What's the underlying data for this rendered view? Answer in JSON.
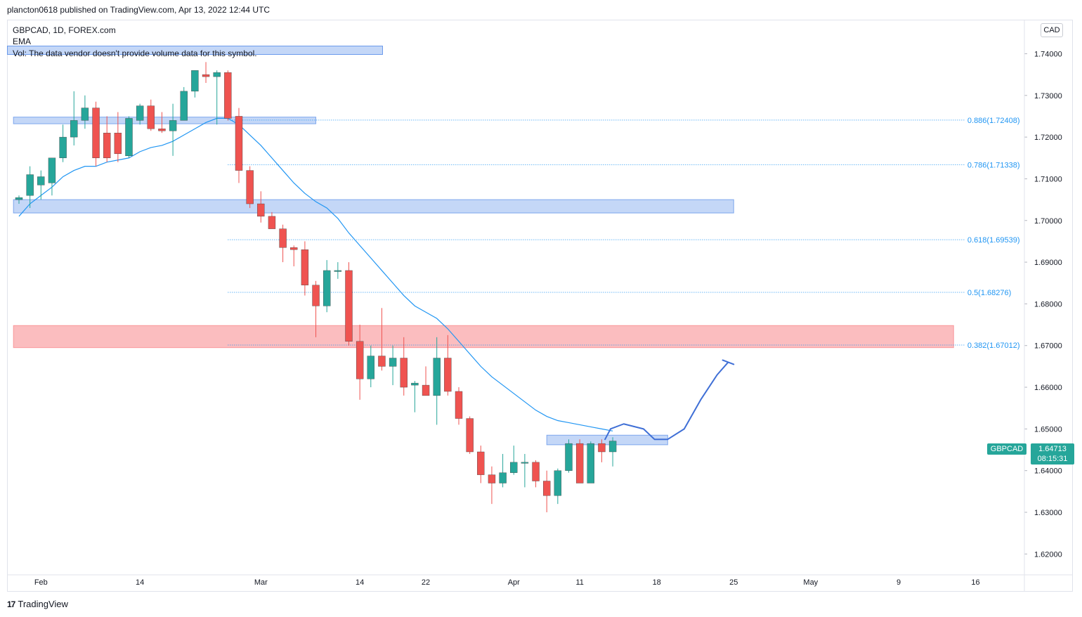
{
  "header": {
    "published": "plancton0618 published on TradingView.com, Apr 13, 2022 12:44 UTC"
  },
  "legend": {
    "symbol": "GBPCAD, 1D, FOREX.com",
    "ema": "EMA",
    "vol": "Vol: The data vendor doesn't provide volume data for this symbol."
  },
  "currency": "CAD",
  "price_tag": {
    "symbol": "GBPCAD",
    "price": "1.64713",
    "countdown": "08:15:31"
  },
  "footer": {
    "brand": "TradingView",
    "logo": "17"
  },
  "colors": {
    "up": "#26a69a",
    "down": "#ef5350",
    "ema": "#2196f3",
    "zone_blue": "#568ce8",
    "zone_red": "#f77c80",
    "fib": "#2196f3"
  },
  "chart_data": {
    "type": "candlestick",
    "symbol": "GBPCAD",
    "interval": "1D",
    "ylim": [
      1.615,
      1.748
    ],
    "y_ticks": [
      "1.74000",
      "1.73000",
      "1.72000",
      "1.71000",
      "1.70000",
      "1.69000",
      "1.68000",
      "1.67000",
      "1.66000",
      "1.65000",
      "1.64000",
      "1.63000",
      "1.62000"
    ],
    "x_labels": [
      {
        "label": "Feb",
        "bar": 2
      },
      {
        "label": "14",
        "bar": 11
      },
      {
        "label": "Mar",
        "bar": 22
      },
      {
        "label": "14",
        "bar": 31
      },
      {
        "label": "22",
        "bar": 37
      },
      {
        "label": "Apr",
        "bar": 45
      },
      {
        "label": "11",
        "bar": 51
      },
      {
        "label": "18",
        "bar": 58
      },
      {
        "label": "25",
        "bar": 65
      },
      {
        "label": "May",
        "bar": 72
      },
      {
        "label": "9",
        "bar": 80
      },
      {
        "label": "16",
        "bar": 87
      }
    ],
    "candles": [
      {
        "o": 1.705,
        "h": 1.706,
        "l": 1.704,
        "c": 1.7055
      },
      {
        "o": 1.706,
        "h": 1.713,
        "l": 1.703,
        "c": 1.711
      },
      {
        "o": 1.7085,
        "h": 1.712,
        "l": 1.705,
        "c": 1.7105
      },
      {
        "o": 1.709,
        "h": 1.715,
        "l": 1.706,
        "c": 1.715
      },
      {
        "o": 1.715,
        "h": 1.723,
        "l": 1.714,
        "c": 1.72
      },
      {
        "o": 1.72,
        "h": 1.731,
        "l": 1.718,
        "c": 1.724
      },
      {
        "o": 1.724,
        "h": 1.73,
        "l": 1.722,
        "c": 1.727
      },
      {
        "o": 1.727,
        "h": 1.7285,
        "l": 1.713,
        "c": 1.715
      },
      {
        "o": 1.721,
        "h": 1.725,
        "l": 1.714,
        "c": 1.715
      },
      {
        "o": 1.721,
        "h": 1.726,
        "l": 1.714,
        "c": 1.716
      },
      {
        "o": 1.7155,
        "h": 1.725,
        "l": 1.715,
        "c": 1.7245
      },
      {
        "o": 1.724,
        "h": 1.728,
        "l": 1.723,
        "c": 1.7275
      },
      {
        "o": 1.7275,
        "h": 1.729,
        "l": 1.7215,
        "c": 1.722
      },
      {
        "o": 1.722,
        "h": 1.726,
        "l": 1.721,
        "c": 1.7215
      },
      {
        "o": 1.7215,
        "h": 1.728,
        "l": 1.7155,
        "c": 1.724
      },
      {
        "o": 1.724,
        "h": 1.732,
        "l": 1.724,
        "c": 1.731
      },
      {
        "o": 1.731,
        "h": 1.736,
        "l": 1.7295,
        "c": 1.736
      },
      {
        "o": 1.735,
        "h": 1.738,
        "l": 1.733,
        "c": 1.7345
      },
      {
        "o": 1.7345,
        "h": 1.736,
        "l": 1.723,
        "c": 1.7355
      },
      {
        "o": 1.7355,
        "h": 1.736,
        "l": 1.724,
        "c": 1.7245
      },
      {
        "o": 1.725,
        "h": 1.727,
        "l": 1.709,
        "c": 1.712
      },
      {
        "o": 1.712,
        "h": 1.713,
        "l": 1.703,
        "c": 1.704
      },
      {
        "o": 1.704,
        "h": 1.707,
        "l": 1.6995,
        "c": 1.701
      },
      {
        "o": 1.701,
        "h": 1.702,
        "l": 1.699,
        "c": 1.698
      },
      {
        "o": 1.698,
        "h": 1.699,
        "l": 1.69,
        "c": 1.6935
      },
      {
        "o": 1.6935,
        "h": 1.694,
        "l": 1.689,
        "c": 1.693
      },
      {
        "o": 1.693,
        "h": 1.695,
        "l": 1.682,
        "c": 1.6845
      },
      {
        "o": 1.6845,
        "h": 1.6855,
        "l": 1.672,
        "c": 1.6795
      },
      {
        "o": 1.6795,
        "h": 1.6905,
        "l": 1.678,
        "c": 1.688
      },
      {
        "o": 1.688,
        "h": 1.69,
        "l": 1.686,
        "c": 1.688
      },
      {
        "o": 1.688,
        "h": 1.69,
        "l": 1.67,
        "c": 1.671
      },
      {
        "o": 1.671,
        "h": 1.675,
        "l": 1.657,
        "c": 1.662
      },
      {
        "o": 1.662,
        "h": 1.67,
        "l": 1.66,
        "c": 1.6675
      },
      {
        "o": 1.6675,
        "h": 1.679,
        "l": 1.664,
        "c": 1.665
      },
      {
        "o": 1.665,
        "h": 1.67,
        "l": 1.6605,
        "c": 1.667
      },
      {
        "o": 1.667,
        "h": 1.672,
        "l": 1.658,
        "c": 1.66
      },
      {
        "o": 1.6605,
        "h": 1.6615,
        "l": 1.654,
        "c": 1.661
      },
      {
        "o": 1.6605,
        "h": 1.665,
        "l": 1.658,
        "c": 1.658
      },
      {
        "o": 1.658,
        "h": 1.672,
        "l": 1.651,
        "c": 1.667
      },
      {
        "o": 1.667,
        "h": 1.6725,
        "l": 1.658,
        "c": 1.659
      },
      {
        "o": 1.659,
        "h": 1.66,
        "l": 1.651,
        "c": 1.6525
      },
      {
        "o": 1.6525,
        "h": 1.653,
        "l": 1.644,
        "c": 1.6445
      },
      {
        "o": 1.6445,
        "h": 1.646,
        "l": 1.637,
        "c": 1.639
      },
      {
        "o": 1.639,
        "h": 1.641,
        "l": 1.632,
        "c": 1.637
      },
      {
        "o": 1.637,
        "h": 1.644,
        "l": 1.636,
        "c": 1.6395
      },
      {
        "o": 1.6395,
        "h": 1.646,
        "l": 1.639,
        "c": 1.642
      },
      {
        "o": 1.642,
        "h": 1.644,
        "l": 1.636,
        "c": 1.642
      },
      {
        "o": 1.642,
        "h": 1.6425,
        "l": 1.636,
        "c": 1.6375
      },
      {
        "o": 1.6375,
        "h": 1.64,
        "l": 1.63,
        "c": 1.634
      },
      {
        "o": 1.634,
        "h": 1.6405,
        "l": 1.632,
        "c": 1.64
      },
      {
        "o": 1.64,
        "h": 1.6475,
        "l": 1.6395,
        "c": 1.6465
      },
      {
        "o": 1.6465,
        "h": 1.6475,
        "l": 1.637,
        "c": 1.637
      },
      {
        "o": 1.637,
        "h": 1.647,
        "l": 1.637,
        "c": 1.6465
      },
      {
        "o": 1.6465,
        "h": 1.6475,
        "l": 1.642,
        "c": 1.6445
      },
      {
        "o": 1.6445,
        "h": 1.648,
        "l": 1.641,
        "c": 1.6471
      }
    ],
    "ema": [
      1.701,
      1.704,
      1.706,
      1.708,
      1.7105,
      1.712,
      1.713,
      1.713,
      1.714,
      1.7145,
      1.715,
      1.7165,
      1.7175,
      1.718,
      1.719,
      1.7205,
      1.722,
      1.7235,
      1.7245,
      1.7245,
      1.723,
      1.7205,
      1.718,
      1.715,
      1.712,
      1.709,
      1.7065,
      1.7045,
      1.703,
      1.7005,
      1.697,
      1.694,
      1.691,
      1.688,
      1.685,
      1.682,
      1.6795,
      1.678,
      1.6765,
      1.674,
      1.671,
      1.668,
      1.665,
      1.6625,
      1.6605,
      1.6585,
      1.6565,
      1.6545,
      1.653,
      1.652,
      1.6515,
      1.651,
      1.6505,
      1.65,
      1.6495
    ],
    "zones": [
      {
        "color": "blue",
        "bar_start": -0.5,
        "bar_end": 27,
        "y_low": 1.7232,
        "y_high": 1.7248
      },
      {
        "color": "blue",
        "bar_start": -0.5,
        "bar_end": 65,
        "y_low": 1.7018,
        "y_high": 1.705
      },
      {
        "color": "red",
        "bar_start": -0.5,
        "bar_end": 85,
        "y_low": 1.6695,
        "y_high": 1.6748
      },
      {
        "color": "blue",
        "bar_start": 48,
        "bar_end": 59,
        "y_low": 1.6462,
        "y_high": 1.6485
      }
    ],
    "fib_levels": [
      {
        "label": "0.886(1.72408)",
        "value": 1.72408
      },
      {
        "label": "0.786(1.71338)",
        "value": 1.71338
      },
      {
        "label": "0.618(1.69539)",
        "value": 1.69539
      },
      {
        "label": "0.5(1.68276)",
        "value": 1.68276
      },
      {
        "label": "0.382(1.67012)",
        "value": 1.67012
      }
    ],
    "fib_bar_start": 19,
    "fib_bar_end": 86,
    "projection": [
      {
        "bar": 53.3,
        "y": 1.6475
      },
      {
        "bar": 53.8,
        "y": 1.65
      },
      {
        "bar": 55,
        "y": 1.6512
      },
      {
        "bar": 56.8,
        "y": 1.65
      },
      {
        "bar": 57.8,
        "y": 1.6475
      },
      {
        "bar": 59,
        "y": 1.6475
      },
      {
        "bar": 60.5,
        "y": 1.65
      },
      {
        "bar": 62,
        "y": 1.657
      },
      {
        "bar": 63.5,
        "y": 1.663
      },
      {
        "bar": 64.5,
        "y": 1.666
      },
      {
        "bar": 64,
        "y": 1.6665
      },
      {
        "bar": 65,
        "y": 1.6655
      }
    ]
  }
}
